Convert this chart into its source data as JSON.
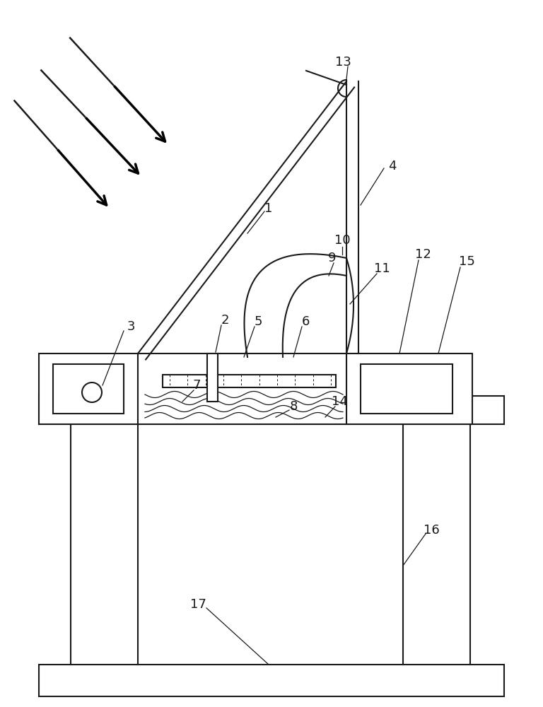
{
  "bg_color": "#ffffff",
  "line_color": "#1a1a1a",
  "figsize": [
    7.68,
    10.0
  ],
  "dpi": 100
}
